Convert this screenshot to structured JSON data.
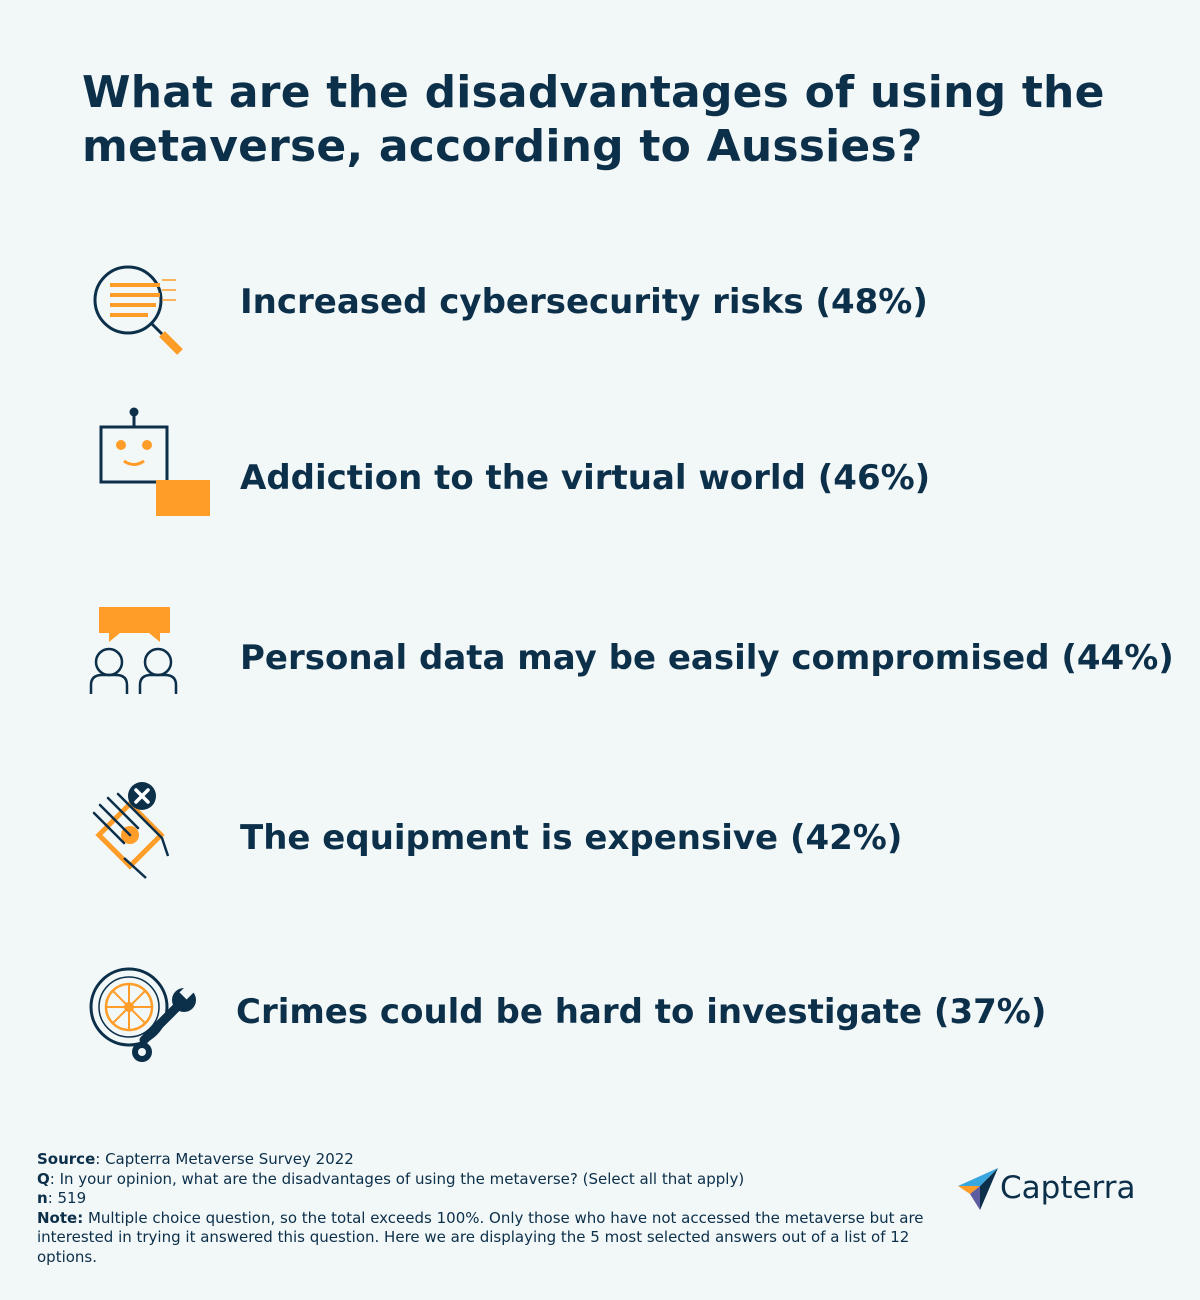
{
  "title": "What are the disadvantages of using the metaverse, according to Aussies?",
  "items": [
    {
      "icon": "document-search-icon",
      "label": "Increased cybersecurity risks (48%)"
    },
    {
      "icon": "robot-screen-icon",
      "label": "Addiction to the virtual world (46%)"
    },
    {
      "icon": "people-chat-icon",
      "label": "Personal data may be easily compromised (44%)"
    },
    {
      "icon": "hand-money-icon",
      "label": "The equipment is expensive (42%)"
    },
    {
      "icon": "wheel-wrench-icon",
      "label": "Crimes could be hard to investigate (37%)"
    }
  ],
  "footer": {
    "source_label": "Source",
    "source_text": ": Capterra Metaverse Survey 2022",
    "q_label": "Q",
    "q_text": ": In your opinion, what are the disadvantages of using the metaverse? (Select all that apply)",
    "n_label": "n",
    "n_text": ": 519",
    "note_label": "Note:",
    "note_text": " Multiple choice question, so the total exceeds 100%. Only those who have not accessed the metaverse but are interested in trying it answered this question. Here we are displaying the 5 most selected answers out of a list of 12 options."
  },
  "brand": {
    "name": "Capterra"
  },
  "colors": {
    "navy": "#0c2f4a",
    "orange": "#ff9d28",
    "background": "#f2f7f7"
  }
}
